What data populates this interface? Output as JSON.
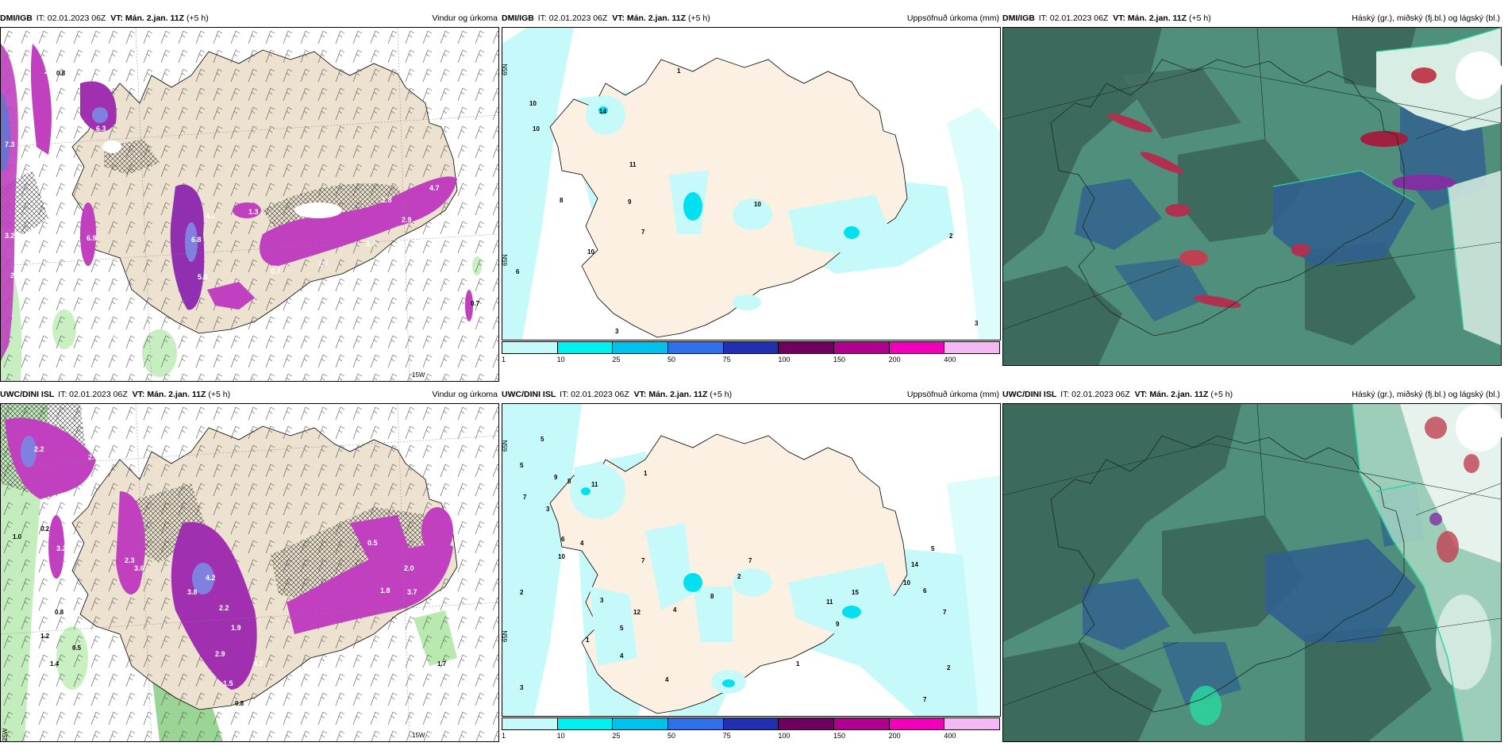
{
  "panels": [
    {
      "src": "DMI/IGB",
      "it": "IT: 02.01.2023 06Z",
      "vt": "VT: Mán. 2.jan. 11Z",
      "lead": "(+5 h)",
      "title": "Vindur og úrkoma"
    },
    {
      "src": "DMI/IGB",
      "it": "IT: 02.01.2023 06Z",
      "vt": "VT: Mán. 2.jan. 11Z",
      "lead": "(+5 h)",
      "title": "Uppsöfnuð úrkoma (mm)"
    },
    {
      "src": "DMI/IGB",
      "it": "IT: 02.01.2023 06Z",
      "vt": "VT: Mán. 2.jan. 11Z",
      "lead": "(+5 h)",
      "title": "Háský (gr.), miðský (fj.bl.) og lágský (bl.)"
    },
    {
      "src": "UWC/DINI ISL",
      "it": "IT: 02.01.2023 06Z",
      "vt": "VT: Mán. 2.jan. 11Z",
      "lead": "(+5 h)",
      "title": "Vindur og úrkoma"
    },
    {
      "src": "UWC/DINI ISL",
      "it": "IT: 02.01.2023 06Z",
      "vt": "VT: Mán. 2.jan. 11Z",
      "lead": "(+5 h)",
      "title": "Uppsöfnuð úrkoma (mm)"
    },
    {
      "src": "UWC/DINI ISL",
      "it": "IT: 02.01.2023 06Z",
      "vt": "VT: Mán. 2.jan. 11Z",
      "lead": "(+5 h)",
      "title": "Háský (gr.), miðský (fj.bl.) og lágský (bl.)"
    }
  ],
  "colorbar": {
    "ticks": [
      "1",
      "10",
      "25",
      "50",
      "75",
      "100",
      "150",
      "200",
      "400"
    ],
    "colors": [
      "#c6fafa",
      "#00f0f0",
      "#00c0ec",
      "#3070e8",
      "#2030b0",
      "#700060",
      "#b00090",
      "#f000b8",
      "#f4b8f4"
    ]
  },
  "axis_labels": {
    "lat": "65N",
    "lon": "15W",
    "lon2": "25W"
  },
  "map_labels": {
    "dmi_wind": [
      "2.6",
      "0.8",
      "7.3",
      "3.2",
      "2.8",
      "1.5",
      "6.3",
      "6.9",
      "4.2",
      "6.8",
      "5.8",
      "1.3",
      "0.7",
      "2.7",
      "3.7",
      "2.9",
      "1.8",
      "4.7",
      "0.7",
      "0.7"
    ],
    "dmi_precip": [
      "1",
      "10",
      "10",
      "14",
      "11",
      "8",
      "9",
      "7",
      "10",
      "6",
      "3",
      "10",
      "2",
      "3"
    ],
    "uwc_wind": [
      "2.2",
      "2.6",
      "1.0",
      "0.2",
      "3.2",
      "0.8",
      "1.2",
      "0.5",
      "1.4",
      "2.3",
      "3.6",
      "3.8",
      "4.2",
      "2.2",
      "1.9",
      "2.9",
      "4.2",
      "1.5",
      "0.5",
      "2.0",
      "1.8",
      "3.7",
      "1.7",
      "0.8"
    ],
    "uwc_precip": [
      "5",
      "5",
      "9",
      "8",
      "11",
      "1",
      "7",
      "3",
      "6",
      "4",
      "10",
      "2",
      "3",
      "7",
      "12",
      "5",
      "4",
      "1",
      "4",
      "7",
      "2",
      "8",
      "15",
      "14",
      "11",
      "10",
      "6",
      "5",
      "7",
      "9",
      "2",
      "3",
      "1",
      "4",
      "7"
    ]
  }
}
